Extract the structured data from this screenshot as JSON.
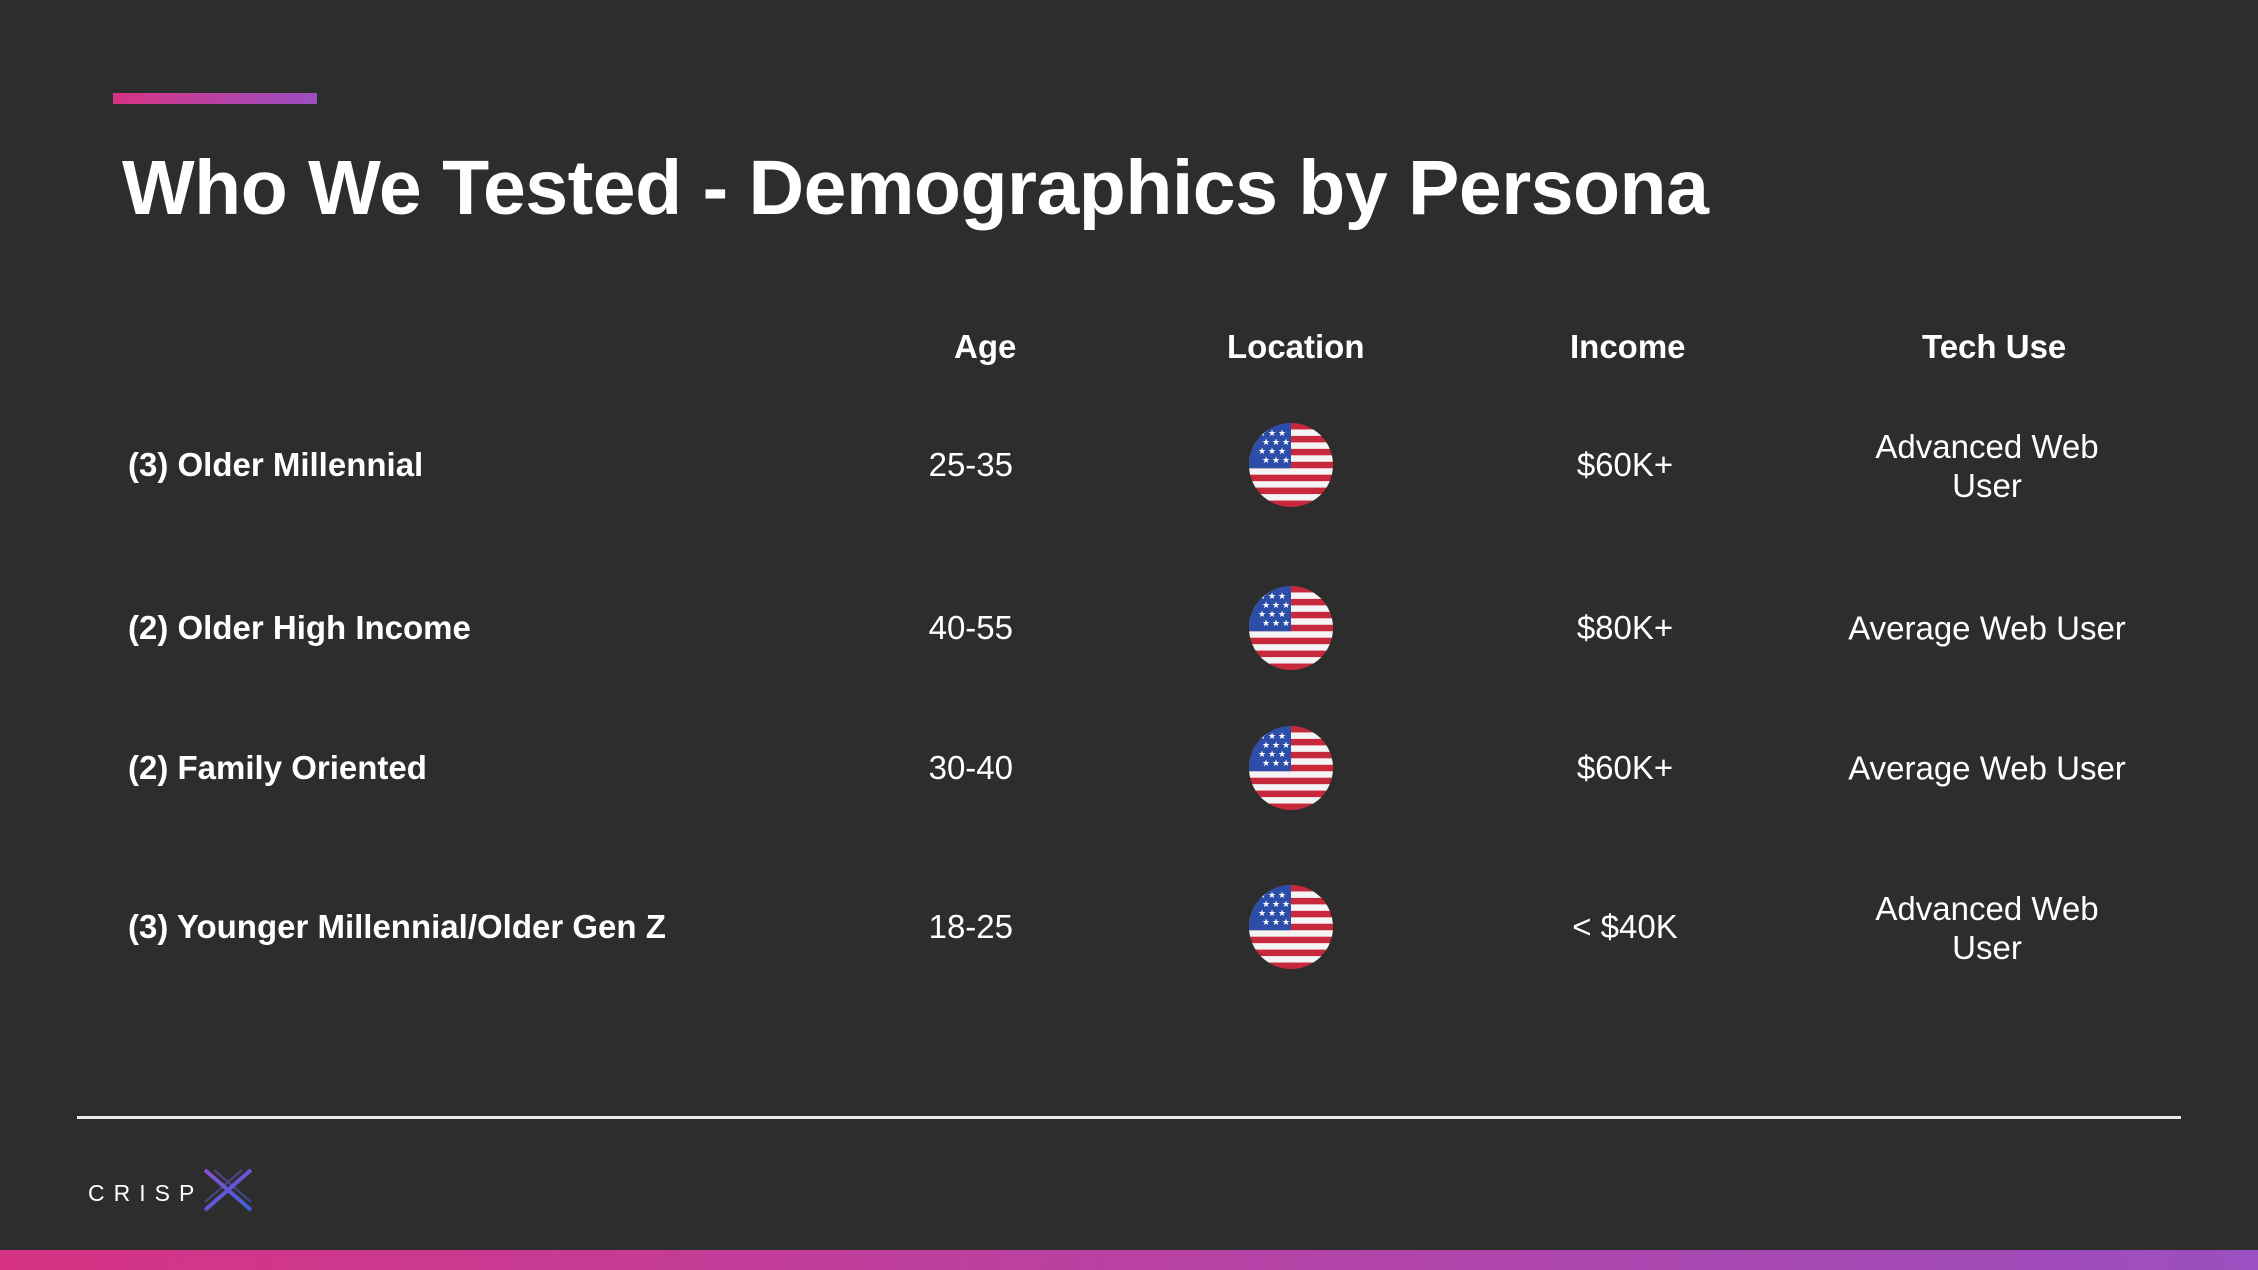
{
  "slide": {
    "title": "Who We Tested - Demographics by Persona",
    "accent_colors": [
      "#d63384",
      "#9b4fc0"
    ]
  },
  "table": {
    "headers": {
      "age": "Age",
      "location": "Location",
      "income": "Income",
      "tech_use": "Tech Use"
    },
    "rows": [
      {
        "persona": "(3) Older Millennial",
        "age": "25-35",
        "location_icon": "us-flag-icon",
        "income": "$60K+",
        "tech_use": "Advanced Web User"
      },
      {
        "persona": "(2) Older High Income",
        "age": "40-55",
        "location_icon": "us-flag-icon",
        "income": "$80K+",
        "tech_use": "Average Web User"
      },
      {
        "persona": "(2) Family Oriented",
        "age": "30-40",
        "location_icon": "us-flag-icon",
        "income": "$60K+",
        "tech_use": "Average Web User"
      },
      {
        "persona": "(3) Younger Millennial/Older Gen Z",
        "age": "18-25",
        "location_icon": "us-flag-icon",
        "income": "< $40K",
        "tech_use": "Advanced Web User"
      }
    ]
  },
  "footer": {
    "logo_text": "CRISP",
    "logo_mark": "X",
    "logo_colors": [
      "#7b4fd6",
      "#3d5fd8"
    ]
  }
}
